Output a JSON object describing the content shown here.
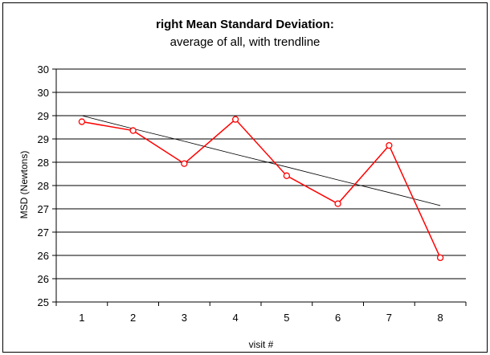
{
  "chart_data": {
    "type": "line",
    "title": "right Mean Standard Deviation:",
    "subtitle": "average of all, with trendline",
    "xlabel": "visit #",
    "ylabel": "MSD (Newtons)",
    "categories": [
      "1",
      "2",
      "3",
      "4",
      "5",
      "6",
      "7",
      "8"
    ],
    "ylim": [
      25,
      30
    ],
    "ytick_labels": [
      "30",
      "30",
      "29",
      "29",
      "28",
      "28",
      "27",
      "27",
      "26",
      "26",
      "25"
    ],
    "grid": true,
    "legend": "none",
    "series": [
      {
        "values": [
          28.87,
          28.68,
          27.97,
          28.92,
          27.71,
          27.11,
          28.36,
          25.95
        ],
        "color": "#ff0000",
        "marker": "circle"
      },
      {
        "trendline": true,
        "values": [
          29.0,
          28.72,
          28.45,
          28.17,
          27.9,
          27.62,
          27.35,
          27.07
        ],
        "color": "#000000"
      }
    ]
  }
}
